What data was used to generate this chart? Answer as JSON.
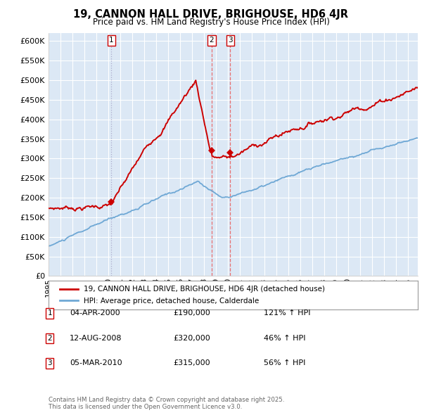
{
  "title": "19, CANNON HALL DRIVE, BRIGHOUSE, HD6 4JR",
  "subtitle": "Price paid vs. HM Land Registry's House Price Index (HPI)",
  "ylim": [
    0,
    620000
  ],
  "yticks": [
    0,
    50000,
    100000,
    150000,
    200000,
    250000,
    300000,
    350000,
    400000,
    450000,
    500000,
    550000,
    600000
  ],
  "xlim_start": 1995.0,
  "xlim_end": 2025.83,
  "background_color": "#ffffff",
  "chart_bg_color": "#dce8f5",
  "grid_color": "#ffffff",
  "sale_color": "#cc0000",
  "hpi_color": "#6fa8d5",
  "vline1_color": "#aaaacc",
  "vline23_color": "#e87070",
  "transactions": [
    {
      "label": "1",
      "date_num": 2000.25,
      "price": 190000
    },
    {
      "label": "2",
      "date_num": 2008.62,
      "price": 320000
    },
    {
      "label": "3",
      "date_num": 2010.17,
      "price": 315000
    }
  ],
  "legend_sale": "19, CANNON HALL DRIVE, BRIGHOUSE, HD6 4JR (detached house)",
  "legend_hpi": "HPI: Average price, detached house, Calderdale",
  "table": [
    {
      "num": "1",
      "date": "04-APR-2000",
      "price": "£190,000",
      "hpi": "121% ↑ HPI"
    },
    {
      "num": "2",
      "date": "12-AUG-2008",
      "price": "£320,000",
      "hpi": "46% ↑ HPI"
    },
    {
      "num": "3",
      "date": "05-MAR-2010",
      "price": "£315,000",
      "hpi": "56% ↑ HPI"
    }
  ],
  "footnote": "Contains HM Land Registry data © Crown copyright and database right 2025.\nThis data is licensed under the Open Government Licence v3.0."
}
